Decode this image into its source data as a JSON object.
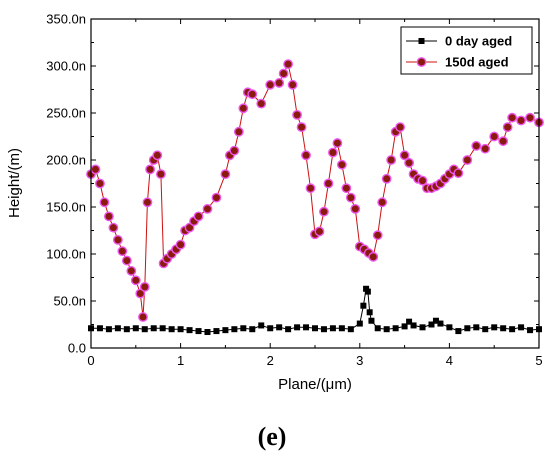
{
  "chart_data": {
    "type": "line",
    "xlabel": "Plane/(μm)",
    "ylabel": "Height/(m)",
    "xlim": [
      0,
      5
    ],
    "ylim": [
      0,
      3.5e-07
    ],
    "x_ticks": [
      0,
      1,
      2,
      3,
      4,
      5
    ],
    "x_tick_labels": [
      "0",
      "1",
      "2",
      "3",
      "4",
      "5"
    ],
    "y_ticks": [
      0,
      5e-08,
      1e-07,
      1.5e-07,
      2e-07,
      2.5e-07,
      3e-07,
      3.5e-07
    ],
    "y_tick_labels": [
      "0.0",
      "50.0n",
      "100.0n",
      "150.0n",
      "200.0n",
      "250.0n",
      "300.0n",
      "350.0n"
    ],
    "grid": false,
    "legend_position": "top-right",
    "series": [
      {
        "name": "0 day aged",
        "marker": "square",
        "color": "#000000",
        "x": [
          0.0,
          0.1,
          0.2,
          0.3,
          0.4,
          0.5,
          0.6,
          0.7,
          0.8,
          0.9,
          1.0,
          1.1,
          1.2,
          1.3,
          1.4,
          1.5,
          1.6,
          1.7,
          1.8,
          1.9,
          2.0,
          2.1,
          2.2,
          2.3,
          2.4,
          2.5,
          2.6,
          2.7,
          2.8,
          2.9,
          3.0,
          3.04,
          3.07,
          3.09,
          3.11,
          3.13,
          3.2,
          3.3,
          3.4,
          3.5,
          3.55,
          3.6,
          3.7,
          3.8,
          3.85,
          3.9,
          4.0,
          4.1,
          4.2,
          4.3,
          4.4,
          4.5,
          4.6,
          4.7,
          4.8,
          4.9,
          5.0
        ],
        "y": [
          2.1e-08,
          2.1e-08,
          2e-08,
          2.1e-08,
          2e-08,
          2.1e-08,
          2e-08,
          2.1e-08,
          2.1e-08,
          2e-08,
          2e-08,
          1.9e-08,
          1.8e-08,
          1.7e-08,
          1.8e-08,
          1.9e-08,
          2e-08,
          2.1e-08,
          2e-08,
          2.4e-08,
          2.1e-08,
          2.2e-08,
          2e-08,
          2.2e-08,
          2.2e-08,
          2.1e-08,
          2e-08,
          2.1e-08,
          2.1e-08,
          2e-08,
          2.6e-08,
          4.5e-08,
          6.3e-08,
          6e-08,
          3.8e-08,
          2.9e-08,
          2.1e-08,
          2e-08,
          2.1e-08,
          2.3e-08,
          2.8e-08,
          2.4e-08,
          2.2e-08,
          2.5e-08,
          2.9e-08,
          2.6e-08,
          2.2e-08,
          1.8e-08,
          2.1e-08,
          2.2e-08,
          2e-08,
          2.2e-08,
          2.1e-08,
          2e-08,
          2.2e-08,
          1.9e-08,
          2e-08
        ]
      },
      {
        "name": "150d aged",
        "marker": "circle",
        "color": "#cc1111",
        "x": [
          0.0,
          0.05,
          0.1,
          0.15,
          0.2,
          0.25,
          0.3,
          0.35,
          0.4,
          0.45,
          0.5,
          0.55,
          0.58,
          0.6,
          0.63,
          0.66,
          0.7,
          0.74,
          0.78,
          0.81,
          0.85,
          0.9,
          0.95,
          1.0,
          1.05,
          1.1,
          1.15,
          1.2,
          1.3,
          1.4,
          1.5,
          1.55,
          1.6,
          1.65,
          1.7,
          1.75,
          1.8,
          1.9,
          2.0,
          2.1,
          2.15,
          2.2,
          2.25,
          2.3,
          2.35,
          2.4,
          2.45,
          2.5,
          2.55,
          2.6,
          2.65,
          2.7,
          2.75,
          2.8,
          2.85,
          2.9,
          2.95,
          3.0,
          3.05,
          3.1,
          3.15,
          3.2,
          3.25,
          3.3,
          3.35,
          3.4,
          3.45,
          3.5,
          3.55,
          3.6,
          3.65,
          3.7,
          3.75,
          3.8,
          3.85,
          3.9,
          3.95,
          4.0,
          4.05,
          4.1,
          4.2,
          4.3,
          4.4,
          4.5,
          4.6,
          4.65,
          4.7,
          4.8,
          4.9,
          5.0
        ],
        "y": [
          1.85e-07,
          1.9e-07,
          1.75e-07,
          1.55e-07,
          1.4e-07,
          1.28e-07,
          1.15e-07,
          1.03e-07,
          9.3e-08,
          8.2e-08,
          7.2e-08,
          5.8e-08,
          3.3e-08,
          6.5e-08,
          1.55e-07,
          1.9e-07,
          2e-07,
          2.05e-07,
          1.85e-07,
          9e-08,
          9.5e-08,
          1e-07,
          1.05e-07,
          1.1e-07,
          1.25e-07,
          1.28e-07,
          1.35e-07,
          1.4e-07,
          1.48e-07,
          1.6e-07,
          1.85e-07,
          2.05e-07,
          2.1e-07,
          2.3e-07,
          2.55e-07,
          2.72e-07,
          2.7e-07,
          2.6e-07,
          2.8e-07,
          2.82e-07,
          2.92e-07,
          3.02e-07,
          2.8e-07,
          2.48e-07,
          2.35e-07,
          2.05e-07,
          1.7e-07,
          1.21e-07,
          1.24e-07,
          1.45e-07,
          1.75e-07,
          2.08e-07,
          2.18e-07,
          1.95e-07,
          1.7e-07,
          1.6e-07,
          1.48e-07,
          1.08e-07,
          1.05e-07,
          1.01e-07,
          9.7e-08,
          1.2e-07,
          1.55e-07,
          1.8e-07,
          2e-07,
          2.3e-07,
          2.35e-07,
          2.05e-07,
          1.97e-07,
          1.85e-07,
          1.8e-07,
          1.78e-07,
          1.7e-07,
          1.7e-07,
          1.72e-07,
          1.75e-07,
          1.8e-07,
          1.85e-07,
          1.9e-07,
          1.86e-07,
          2e-07,
          2.15e-07,
          2.12e-07,
          2.25e-07,
          2.2e-07,
          2.35e-07,
          2.45e-07,
          2.42e-07,
          2.45e-07,
          2.4e-07
        ]
      }
    ]
  },
  "caption": "(e)"
}
